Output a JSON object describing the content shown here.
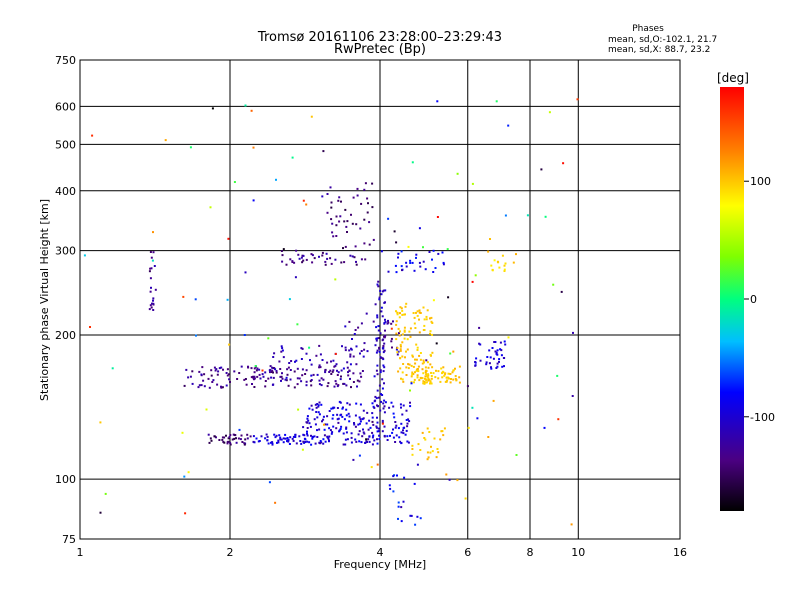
{
  "title": {
    "line1": "Tromsø 20161106 23:28:00–23:29:43",
    "line2": "RwPretec (Bp)"
  },
  "phases": {
    "header": "Phases",
    "o_line": "mean, sd,O:-102.1, 21.7",
    "x_line": "mean, sd,X:  88.7, 23.2"
  },
  "colorbar": {
    "unit_label": "[deg]",
    "tick_labels": [
      "100",
      "0",
      "-100"
    ],
    "tick_values": [
      100,
      0,
      -100
    ],
    "range": [
      -180,
      180
    ]
  },
  "chart_data": {
    "type": "scatter",
    "xlabel": "Frequency [MHz]",
    "ylabel": "Stationary phase Virtual Height [km]",
    "x_scale": "log",
    "y_scale": "log",
    "xlim": [
      1,
      16
    ],
    "ylim": [
      75,
      750
    ],
    "x_ticks": [
      1,
      2,
      4,
      6,
      8,
      10,
      16
    ],
    "y_ticks": [
      75,
      100,
      200,
      300,
      400,
      500,
      600,
      750
    ],
    "grid": true,
    "color_by": "phase (deg)",
    "clusters": [
      {
        "x": [
          1.6,
          3.7
        ],
        "y": [
          155,
          172
        ],
        "n": 150,
        "phase": [
          -150,
          -110
        ]
      },
      {
        "x": [
          1.8,
          2.2
        ],
        "y": [
          118,
          124
        ],
        "n": 40,
        "phase": [
          -160,
          -120
        ]
      },
      {
        "x": [
          2.2,
          3.0
        ],
        "y": [
          118,
          124
        ],
        "n": 60,
        "phase": [
          -115,
          -80
        ]
      },
      {
        "x": [
          2.8,
          4.6
        ],
        "y": [
          118,
          145
        ],
        "n": 220,
        "phase": [
          -125,
          -75
        ]
      },
      {
        "x": [
          2.4,
          3.6
        ],
        "y": [
          160,
          190
        ],
        "n": 60,
        "phase": [
          -135,
          -95
        ]
      },
      {
        "x": [
          3.9,
          4.1
        ],
        "y": [
          140,
          260
        ],
        "n": 70,
        "phase": [
          -130,
          -90
        ]
      },
      {
        "x": [
          3.4,
          4.4
        ],
        "y": [
          180,
          215
        ],
        "n": 40,
        "phase": [
          -140,
          -100
        ]
      },
      {
        "x": [
          4.3,
          5.1
        ],
        "y": [
          158,
          230
        ],
        "n": 110,
        "phase": [
          90,
          110
        ]
      },
      {
        "x": [
          4.6,
          5.8
        ],
        "y": [
          158,
          172
        ],
        "n": 80,
        "phase": [
          90,
          110
        ]
      },
      {
        "x": [
          6.2,
          7.2
        ],
        "y": [
          170,
          195
        ],
        "n": 40,
        "phase": [
          -120,
          -80
        ]
      },
      {
        "x": [
          2.5,
          3.8
        ],
        "y": [
          280,
          300
        ],
        "n": 40,
        "phase": [
          -150,
          -110
        ]
      },
      {
        "x": [
          3.1,
          3.9
        ],
        "y": [
          300,
          420
        ],
        "n": 45,
        "phase": [
          -160,
          -120
        ]
      },
      {
        "x": [
          4.0,
          5.4
        ],
        "y": [
          270,
          300
        ],
        "n": 30,
        "phase": [
          -110,
          -70
        ]
      },
      {
        "x": [
          6.5,
          7.7
        ],
        "y": [
          270,
          300
        ],
        "n": 15,
        "phase": [
          80,
          110
        ]
      },
      {
        "x": [
          1.38,
          1.42
        ],
        "y": [
          220,
          300
        ],
        "n": 20,
        "phase": [
          -150,
          -110
        ]
      },
      {
        "x": [
          4.6,
          5.4
        ],
        "y": [
          110,
          130
        ],
        "n": 25,
        "phase": [
          90,
          110
        ]
      },
      {
        "x": [
          4.1,
          4.9
        ],
        "y": [
          78,
          108
        ],
        "n": 20,
        "phase": [
          -120,
          -60
        ]
      },
      {
        "x": [
          1.0,
          10.0
        ],
        "y": [
          80,
          640
        ],
        "n": 120,
        "phase": [
          -180,
          180
        ]
      }
    ]
  }
}
